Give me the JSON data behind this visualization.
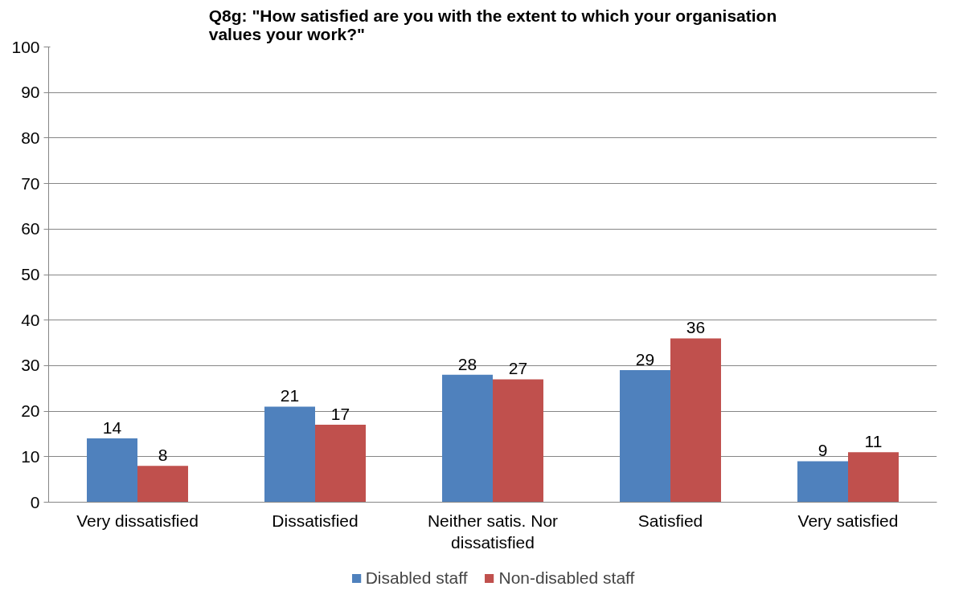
{
  "chart_data": {
    "type": "bar",
    "title": "Q8g: \"How satisfied are you with the extent to which your organisation values your work?\"",
    "categories": [
      "Very dissatisfied",
      "Dissatisfied",
      "Neither satis. Nor dissatisfied",
      "Satisfied",
      "Very satisfied"
    ],
    "series": [
      {
        "name": "Disabled staff",
        "color": "#4f81bd",
        "values": [
          14,
          21,
          28,
          29,
          9
        ]
      },
      {
        "name": "Non-disabled staff",
        "color": "#c0504d",
        "values": [
          8,
          17,
          27,
          36,
          11
        ]
      }
    ],
    "ylim": [
      0,
      100
    ],
    "yticks": [
      0,
      10,
      20,
      30,
      40,
      50,
      60,
      70,
      80,
      90,
      100
    ],
    "grid": "y",
    "legend": "bottom",
    "data_labels": true
  }
}
